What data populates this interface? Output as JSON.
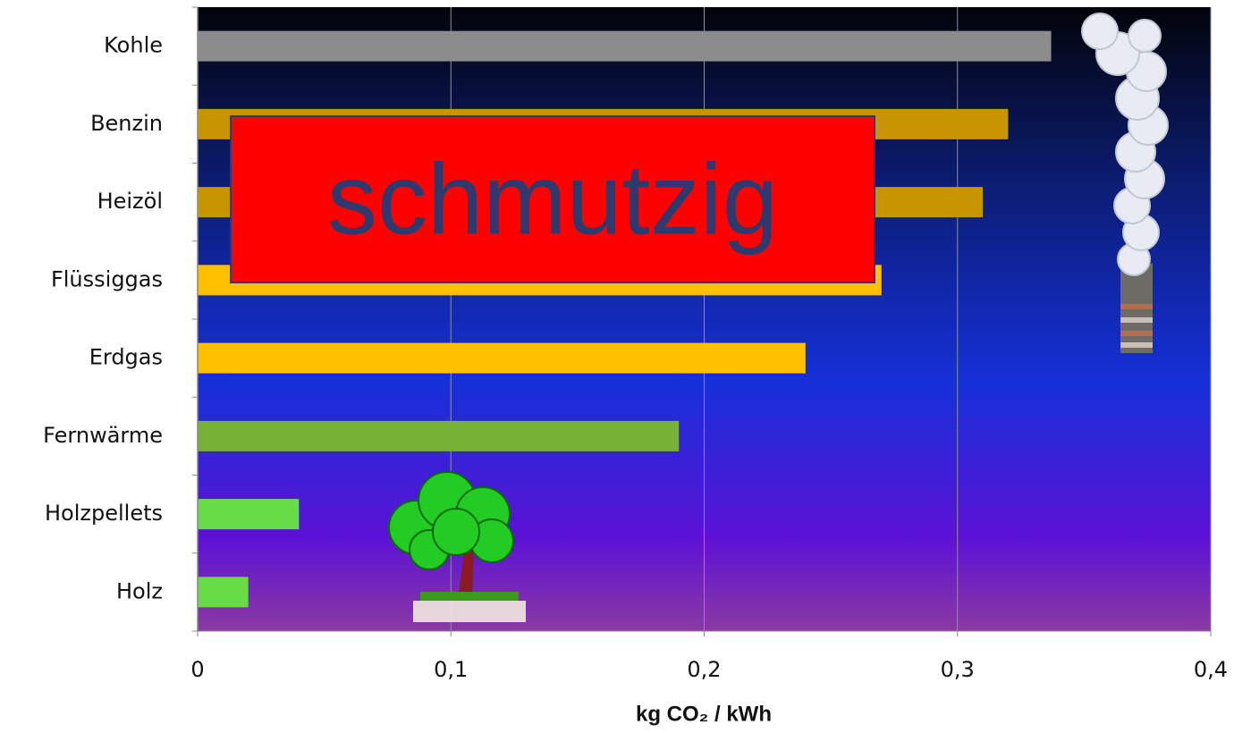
{
  "chart_data": {
    "type": "hbar",
    "categories": [
      "Kohle",
      "Benzin",
      "Heizöl",
      "Flüssiggas",
      "Erdgas",
      "Fernwärme",
      "Holzpellets",
      "Holz"
    ],
    "values": [
      0.337,
      0.32,
      0.31,
      0.27,
      0.24,
      0.19,
      0.04,
      0.02
    ],
    "colors": [
      "#8c8c8c",
      "#c79500",
      "#c79500",
      "#ffc000",
      "#ffc000",
      "#78b234",
      "#66dd44",
      "#66dd44"
    ],
    "xlim": [
      0,
      0.4
    ],
    "xticks": [
      0,
      {
        "value": 0.1,
        "label": "0,1"
      },
      {
        "value": 0.2,
        "label": "0,2"
      },
      {
        "value": 0.3,
        "label": "0,3"
      },
      {
        "value": 0.4,
        "label": "0,4"
      }
    ],
    "xlabel": "kg CO₂  / kWh",
    "grid": true,
    "annotation": "schmutzig"
  }
}
